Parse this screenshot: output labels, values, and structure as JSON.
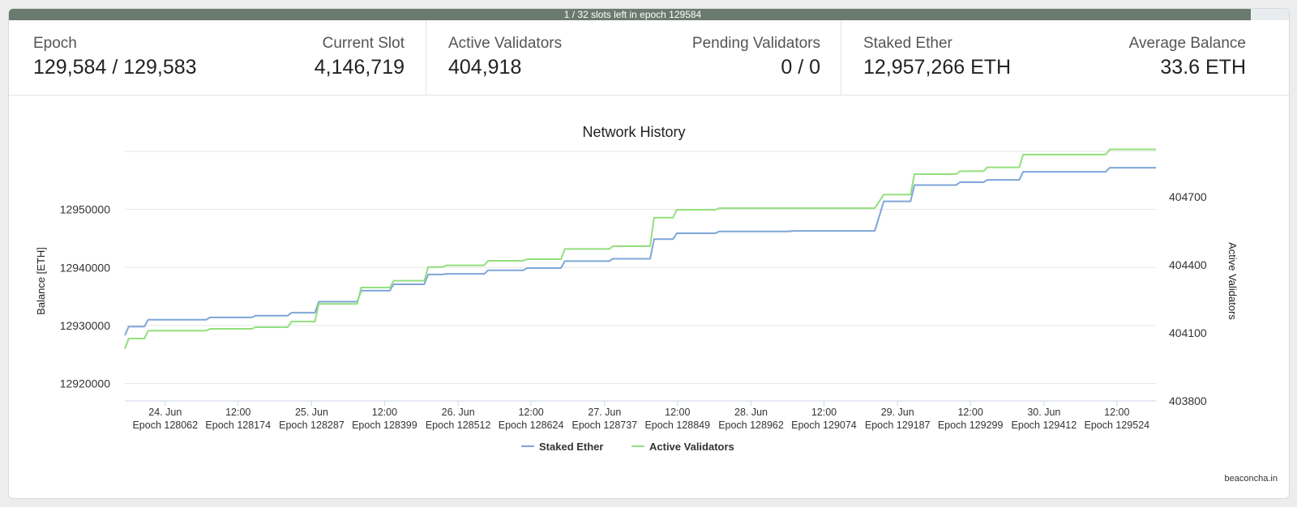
{
  "epoch_progress": {
    "text": "1 / 32 slots left in epoch 129584",
    "fraction": 0.97
  },
  "stats": {
    "epoch": {
      "label": "Epoch",
      "value": "129,584 / 129,583"
    },
    "current_slot": {
      "label": "Current Slot",
      "value": "4,146,719"
    },
    "active_validators": {
      "label": "Active Validators",
      "value": "404,918"
    },
    "pending_validators": {
      "label": "Pending Validators",
      "value": "0 / 0"
    },
    "staked_ether": {
      "label": "Staked Ether",
      "value": "12,957,266 ETH"
    },
    "average_balance": {
      "label": "Average Balance",
      "value": "33.6 ETH"
    }
  },
  "credit": "beaconcha.in",
  "colors": {
    "staked": "#7ea6d8",
    "validators": "#93df7e",
    "grid": "#e6e6e6",
    "text": "#333333"
  },
  "chart_data": {
    "type": "line",
    "title": "Network History",
    "ylabel": "Balance [ETH]",
    "y2label": "Active Validators",
    "ylim": [
      12917000,
      12960000
    ],
    "y2lim": [
      403800,
      404900
    ],
    "yticks": [
      12920000,
      12930000,
      12940000,
      12950000
    ],
    "y2ticks": [
      403800,
      404100,
      404400,
      404700
    ],
    "x_ticks": [
      {
        "line1": "24. Jun",
        "line2": "Epoch 128062"
      },
      {
        "line1": "12:00",
        "line2": "Epoch 128174"
      },
      {
        "line1": "25. Jun",
        "line2": "Epoch 128287"
      },
      {
        "line1": "12:00",
        "line2": "Epoch 128399"
      },
      {
        "line1": "26. Jun",
        "line2": "Epoch 128512"
      },
      {
        "line1": "12:00",
        "line2": "Epoch 128624"
      },
      {
        "line1": "27. Jun",
        "line2": "Epoch 128737"
      },
      {
        "line1": "12:00",
        "line2": "Epoch 128849"
      },
      {
        "line1": "28. Jun",
        "line2": "Epoch 128962"
      },
      {
        "line1": "12:00",
        "line2": "Epoch 129074"
      },
      {
        "line1": "29. Jun",
        "line2": "Epoch 129187"
      },
      {
        "line1": "12:00",
        "line2": "Epoch 129299"
      },
      {
        "line1": "30. Jun",
        "line2": "Epoch 129412"
      },
      {
        "line1": "12:00",
        "line2": "Epoch 129524"
      }
    ],
    "x_tick_epochs": [
      128062,
      128174,
      128287,
      128399,
      128512,
      128624,
      128737,
      128849,
      128962,
      129074,
      129187,
      129299,
      129412,
      129524
    ],
    "xlim": [
      128000,
      129584
    ],
    "series": [
      {
        "name": "Staked Ether",
        "axis": "left",
        "x": [
          128000,
          128006,
          128030,
          128036,
          128125,
          128131,
          128195,
          128201,
          128250,
          128256,
          128292,
          128298,
          128357,
          128363,
          128407,
          128413,
          128460,
          128466,
          128488,
          128494,
          128552,
          128558,
          128612,
          128618,
          128670,
          128676,
          128744,
          128750,
          128807,
          128813,
          128842,
          128848,
          128907,
          128913,
          129020,
          129026,
          129152,
          129166,
          129207,
          129213,
          129277,
          129283,
          129319,
          129325,
          129374,
          129380,
          129507,
          129513,
          129584
        ],
        "values": [
          12928300,
          12929800,
          12929800,
          12931000,
          12931000,
          12931400,
          12931400,
          12931700,
          12931700,
          12932200,
          12932200,
          12934100,
          12934100,
          12936000,
          12936000,
          12937100,
          12937100,
          12938800,
          12938800,
          12938900,
          12938900,
          12939500,
          12939500,
          12939900,
          12939900,
          12941100,
          12941100,
          12941500,
          12941500,
          12944900,
          12944900,
          12945900,
          12945900,
          12946200,
          12946200,
          12946300,
          12946300,
          12951400,
          12951400,
          12954200,
          12954200,
          12954700,
          12954700,
          12955100,
          12955100,
          12956500,
          12956500,
          12957200,
          12957200
        ]
      },
      {
        "name": "Active Validators",
        "axis": "right",
        "x": [
          128000,
          128006,
          128030,
          128036,
          128125,
          128131,
          128195,
          128201,
          128250,
          128256,
          128292,
          128298,
          128357,
          128363,
          128407,
          128413,
          128460,
          128466,
          128488,
          128494,
          128552,
          128558,
          128612,
          128618,
          128670,
          128676,
          128744,
          128750,
          128807,
          128813,
          128842,
          128848,
          128907,
          128913,
          129020,
          129026,
          129152,
          129166,
          129207,
          129213,
          129277,
          129283,
          129319,
          129325,
          129374,
          129380,
          129507,
          129513,
          129584
        ],
        "values": [
          404030,
          404075,
          404075,
          404110,
          404110,
          404118,
          404118,
          404125,
          404125,
          404150,
          404150,
          404228,
          404228,
          404300,
          404300,
          404330,
          404330,
          404390,
          404390,
          404398,
          404398,
          404418,
          404418,
          404425,
          404425,
          404470,
          404470,
          404482,
          404482,
          404608,
          404608,
          404643,
          404643,
          404650,
          404650,
          404650,
          404650,
          404710,
          404710,
          404800,
          404800,
          404813,
          404813,
          404830,
          404830,
          404886,
          404886,
          404909,
          404909
        ]
      }
    ],
    "legend": [
      "Staked Ether",
      "Active Validators"
    ],
    "legend_position": "bottom-center",
    "grid": true
  }
}
